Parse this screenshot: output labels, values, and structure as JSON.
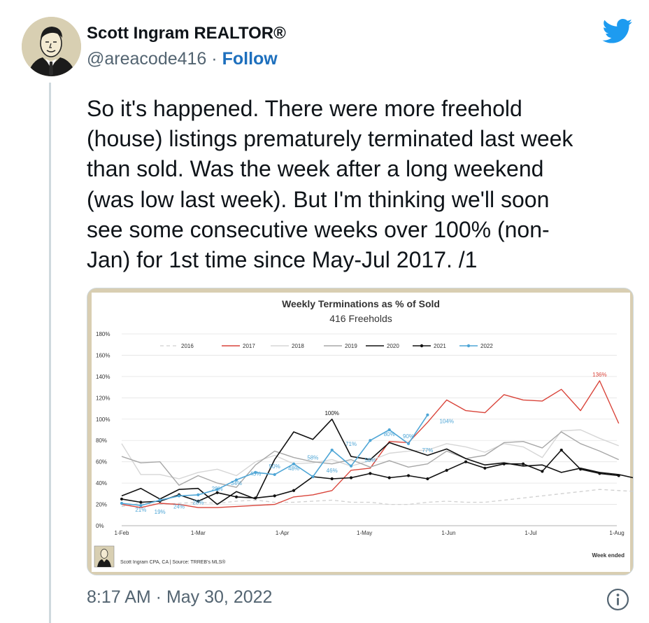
{
  "author": {
    "name": "Scott Ingram REALTOR®",
    "handle": "@areacode416",
    "separator": "·",
    "follow_label": "Follow"
  },
  "icons": {
    "logo": "twitter-bird-icon",
    "info": "info-icon",
    "avatar": "author-portrait"
  },
  "colors": {
    "twitter_blue": "#1d9bf0",
    "follow": "#1d6fbd",
    "chart_frame": "#d9ceb2"
  },
  "tweet": {
    "lines": [
      "So it's happened. There were more freehold",
      "(house) listings prematurely terminated last week",
      "than sold. Was the week after a long weekend",
      "(was low last week). But I'm thinking we'll soon",
      "see some consecutive weeks over 100% (non-",
      "Jan) for 1st time since May-Jul 2017. /1"
    ],
    "timestamp": "8:17 AM · May 30, 2022"
  },
  "chart_data": {
    "type": "line",
    "title": "Weekly Terminations as % of Sold",
    "subtitle": "416 Freeholds",
    "xlabel": "Week ended",
    "footer": "Scott Ingram CPA, CA | Source: TRREB's MLS®",
    "ylim": [
      0,
      180
    ],
    "yticks": [
      "0%",
      "20%",
      "40%",
      "60%",
      "80%",
      "100%",
      "120%",
      "140%",
      "160%",
      "180%"
    ],
    "xticks": [
      {
        "label": "1-Feb",
        "week": 0
      },
      {
        "label": "1-Mar",
        "week": 4
      },
      {
        "label": "1-Apr",
        "week": 8.4
      },
      {
        "label": "1-May",
        "week": 12.7
      },
      {
        "label": "1-Jun",
        "week": 17.1
      },
      {
        "label": "1-Jul",
        "week": 21.4
      },
      {
        "label": "1-Aug",
        "week": 25.9
      }
    ],
    "xlim": [
      0,
      25.9
    ],
    "grid": true,
    "legend_position": "top",
    "series": [
      {
        "name": "2016",
        "color": "#cfcfcf",
        "dash": "5,4",
        "width": 1.3,
        "marker": false,
        "values": [
          18,
          21,
          20,
          21,
          22,
          21,
          23,
          24,
          22,
          22,
          23,
          24,
          22,
          22,
          20,
          20,
          22,
          23,
          22,
          22,
          24,
          26,
          28,
          30,
          32,
          34,
          33,
          32,
          30,
          31
        ]
      },
      {
        "name": "2017",
        "color": "#d9443a",
        "dash": "",
        "width": 1.4,
        "marker": false,
        "values": [
          20,
          17,
          21,
          20,
          17,
          17,
          18,
          19,
          20,
          27,
          29,
          33,
          52,
          54,
          79,
          78,
          97,
          118,
          108,
          106,
          123,
          118,
          117,
          128,
          108,
          136,
          96
        ]
      },
      {
        "name": "2018",
        "color": "#d6d6d6",
        "dash": "",
        "width": 1.4,
        "marker": false,
        "values": [
          77,
          48,
          48,
          44,
          50,
          53,
          47,
          60,
          66,
          58,
          59,
          62,
          56,
          61,
          68,
          70,
          71,
          77,
          74,
          69,
          77,
          74,
          64,
          89,
          90,
          82,
          75
        ]
      },
      {
        "name": "2019",
        "color": "#a7a7a7",
        "dash": "",
        "width": 1.4,
        "marker": false,
        "values": [
          65,
          59,
          60,
          38,
          47,
          40,
          36,
          57,
          70,
          64,
          60,
          58,
          62,
          55,
          61,
          55,
          58,
          70,
          63,
          66,
          78,
          79,
          73,
          88,
          77,
          70,
          62
        ]
      },
      {
        "name": "2020",
        "color": "#111111",
        "dash": "",
        "width": 1.6,
        "marker": false,
        "values": [
          28,
          35,
          25,
          34,
          35,
          20,
          32,
          25,
          62,
          88,
          81,
          100,
          65,
          62,
          78,
          72,
          66,
          72,
          63,
          57,
          59,
          56,
          57,
          50,
          54,
          50,
          48,
          44
        ]
      },
      {
        "name": "2021",
        "color": "#111111",
        "dash": "",
        "width": 1.6,
        "marker": true,
        "values": [
          25,
          22,
          23,
          29,
          23,
          31,
          27,
          26,
          28,
          33,
          46,
          44,
          45,
          49,
          45,
          47,
          44,
          52,
          60,
          54,
          58,
          58,
          51,
          71,
          53,
          49,
          47
        ]
      },
      {
        "name": "2022",
        "color": "#4fa6d6",
        "dash": "",
        "width": 1.6,
        "marker": true,
        "values": [
          21,
          19,
          24,
          28,
          29,
          34,
          43,
          50,
          48,
          58,
          46,
          71,
          56,
          80,
          90,
          77,
          104
        ]
      }
    ],
    "data_labels": [
      {
        "text": "21%",
        "series": "2022",
        "week": 1,
        "value": 21,
        "pos": "below"
      },
      {
        "text": "19%",
        "series": "2022",
        "week": 2,
        "value": 19,
        "pos": "below"
      },
      {
        "text": "24%",
        "series": "2022",
        "week": 3,
        "value": 24,
        "pos": "below"
      },
      {
        "text": "28%",
        "series": "2022",
        "week": 4,
        "value": 28,
        "pos": "below"
      },
      {
        "text": "29%",
        "series": "2022",
        "week": 5,
        "value": 29,
        "pos": "above"
      },
      {
        "text": "34%",
        "series": "2022",
        "week": 6,
        "value": 34,
        "pos": "above"
      },
      {
        "text": "43%",
        "series": "2022",
        "week": 7,
        "value": 43,
        "pos": "above"
      },
      {
        "text": "50%",
        "series": "2022",
        "week": 8,
        "value": 50,
        "pos": "above"
      },
      {
        "text": "48%",
        "series": "2022",
        "week": 9,
        "value": 48,
        "pos": "above"
      },
      {
        "text": "58%",
        "series": "2022",
        "week": 10,
        "value": 58,
        "pos": "above"
      },
      {
        "text": "46%",
        "series": "2022",
        "week": 11,
        "value": 46,
        "pos": "above"
      },
      {
        "text": "71%",
        "series": "2022",
        "week": 12,
        "value": 71,
        "pos": "above"
      },
      {
        "text": "56%",
        "series": "2022",
        "week": 13,
        "value": 56,
        "pos": "above"
      },
      {
        "text": "80%",
        "series": "2022",
        "week": 14,
        "value": 80,
        "pos": "above"
      },
      {
        "text": "90%",
        "series": "2022",
        "week": 15,
        "value": 90,
        "pos": "below"
      },
      {
        "text": "77%",
        "series": "2022",
        "week": 16,
        "value": 77,
        "pos": "below"
      },
      {
        "text": "104%",
        "series": "2022",
        "week": 17,
        "value": 104,
        "pos": "below"
      },
      {
        "text": "100%",
        "series": "2020",
        "week": 11,
        "value": 100,
        "pos": "above"
      },
      {
        "text": "136%",
        "series": "2017",
        "week": 25,
        "value": 136,
        "pos": "above"
      }
    ]
  }
}
